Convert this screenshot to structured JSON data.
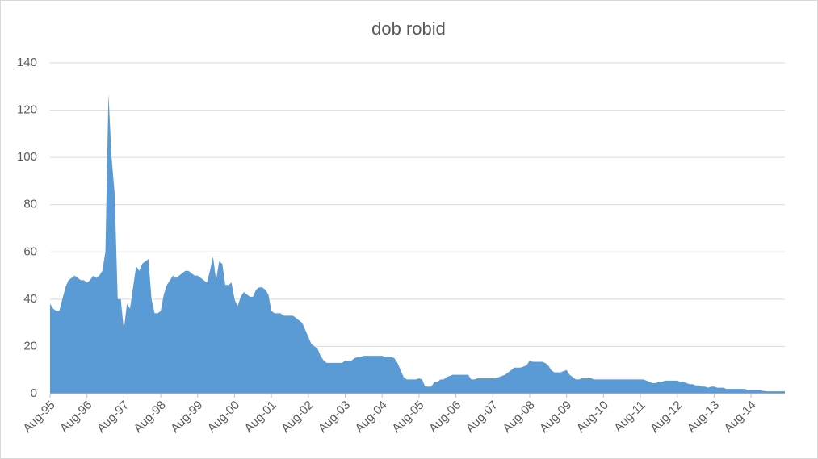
{
  "chart_data": {
    "type": "area",
    "title": "dob robid",
    "categories": [
      "Aug-95",
      null,
      null,
      null,
      null,
      null,
      null,
      null,
      null,
      null,
      null,
      null,
      "Aug-96",
      null,
      null,
      null,
      null,
      null,
      null,
      null,
      null,
      null,
      null,
      null,
      "Aug-97",
      null,
      null,
      null,
      null,
      null,
      null,
      null,
      null,
      null,
      null,
      null,
      "Aug-98",
      null,
      null,
      null,
      null,
      null,
      null,
      null,
      null,
      null,
      null,
      null,
      "Aug-99",
      null,
      null,
      null,
      null,
      null,
      null,
      null,
      null,
      null,
      null,
      null,
      "Aug-00",
      null,
      null,
      null,
      null,
      null,
      null,
      null,
      null,
      null,
      null,
      null,
      "Aug-01",
      null,
      null,
      null,
      null,
      null,
      null,
      null,
      null,
      null,
      null,
      null,
      "Aug-02",
      null,
      null,
      null,
      null,
      null,
      null,
      null,
      null,
      null,
      null,
      null,
      "Aug-03",
      null,
      null,
      null,
      null,
      null,
      null,
      null,
      null,
      null,
      null,
      null,
      "Aug-04",
      null,
      null,
      null,
      null,
      null,
      null,
      null,
      null,
      null,
      null,
      null,
      "Aug-05",
      null,
      null,
      null,
      null,
      null,
      null,
      null,
      null,
      null,
      null,
      null,
      "Aug-06",
      null,
      null,
      null,
      null,
      null,
      null,
      null,
      null,
      null,
      null,
      null,
      "Aug-07",
      null,
      null,
      null,
      null,
      null,
      null,
      null,
      null,
      null,
      null,
      null,
      "Aug-08",
      null,
      null,
      null,
      null,
      null,
      null,
      null,
      null,
      null,
      null,
      null,
      "Aug-09",
      null,
      null,
      null,
      null,
      null,
      null,
      null,
      null,
      null,
      null,
      null,
      "Aug-10",
      null,
      null,
      null,
      null,
      null,
      null,
      null,
      null,
      null,
      null,
      null,
      "Aug-11",
      null,
      null,
      null,
      null,
      null,
      null,
      null,
      null,
      null,
      null,
      null,
      "Aug-12",
      null,
      null,
      null,
      null,
      null,
      null,
      null,
      null,
      null,
      null,
      null,
      "Aug-13",
      null,
      null,
      null,
      null,
      null,
      null,
      null,
      null,
      null,
      null,
      null,
      "Aug-14",
      null,
      null,
      null,
      null,
      null,
      null,
      null,
      null,
      null,
      null,
      null
    ],
    "values": [
      38,
      36,
      35,
      35,
      40,
      45,
      48,
      49,
      50,
      49,
      48,
      48,
      47,
      48,
      50,
      49,
      50,
      52,
      60,
      127,
      100,
      85,
      40,
      40,
      27,
      38,
      36,
      45,
      54,
      52,
      55,
      56,
      57,
      40,
      34,
      34,
      35,
      42,
      46,
      48,
      50,
      49,
      50,
      51,
      52,
      52,
      51,
      50,
      50,
      49,
      48,
      47,
      52,
      58,
      48,
      56,
      55,
      46,
      46,
      47,
      40,
      37,
      41,
      43,
      42,
      41,
      41,
      44,
      45,
      45,
      44,
      42,
      35,
      34,
      34,
      34,
      33,
      33,
      33,
      33,
      32,
      31,
      30,
      27,
      24,
      21,
      20,
      19,
      16,
      14,
      13,
      13,
      13,
      13,
      13,
      13,
      14,
      14,
      14,
      15,
      15.5,
      15.5,
      16,
      16,
      16,
      16,
      16,
      16,
      16,
      15.5,
      15.5,
      15.5,
      15,
      13,
      10,
      7,
      6,
      6,
      6,
      6,
      6.5,
      6,
      3,
      3,
      3,
      5,
      5,
      6,
      6,
      7,
      7.5,
      8,
      8,
      8,
      8,
      8,
      8,
      6,
      6,
      6.5,
      6.5,
      6.5,
      6.5,
      6.5,
      6.5,
      6.5,
      7,
      7.5,
      8,
      9,
      10,
      11,
      11,
      11,
      11.5,
      12,
      14,
      13.5,
      13.5,
      13.5,
      13.5,
      13,
      12,
      10,
      9,
      9,
      9,
      9.5,
      10,
      8,
      7,
      6,
      6,
      6.5,
      6.5,
      6.5,
      6.5,
      6,
      6,
      6,
      6,
      6,
      6,
      6,
      6,
      6,
      6,
      6,
      6,
      6,
      6,
      6,
      6,
      6,
      5.5,
      5,
      4.5,
      4.5,
      5,
      5,
      5.5,
      5.5,
      5.5,
      5.5,
      5.5,
      5,
      5,
      4.5,
      4,
      4,
      3.5,
      3.5,
      3,
      3,
      2.5,
      3,
      3,
      2.5,
      2.5,
      2.5,
      2,
      2,
      2,
      2,
      2,
      2,
      2,
      1.5,
      1.5,
      1.5,
      1.5,
      1.5,
      1.2,
      1,
      1,
      1,
      1,
      1,
      1,
      1
    ],
    "color": "#5b9bd5",
    "ylim": [
      0,
      140
    ],
    "yticks": [
      0,
      20,
      40,
      60,
      80,
      100,
      120,
      140
    ],
    "grid": true
  }
}
